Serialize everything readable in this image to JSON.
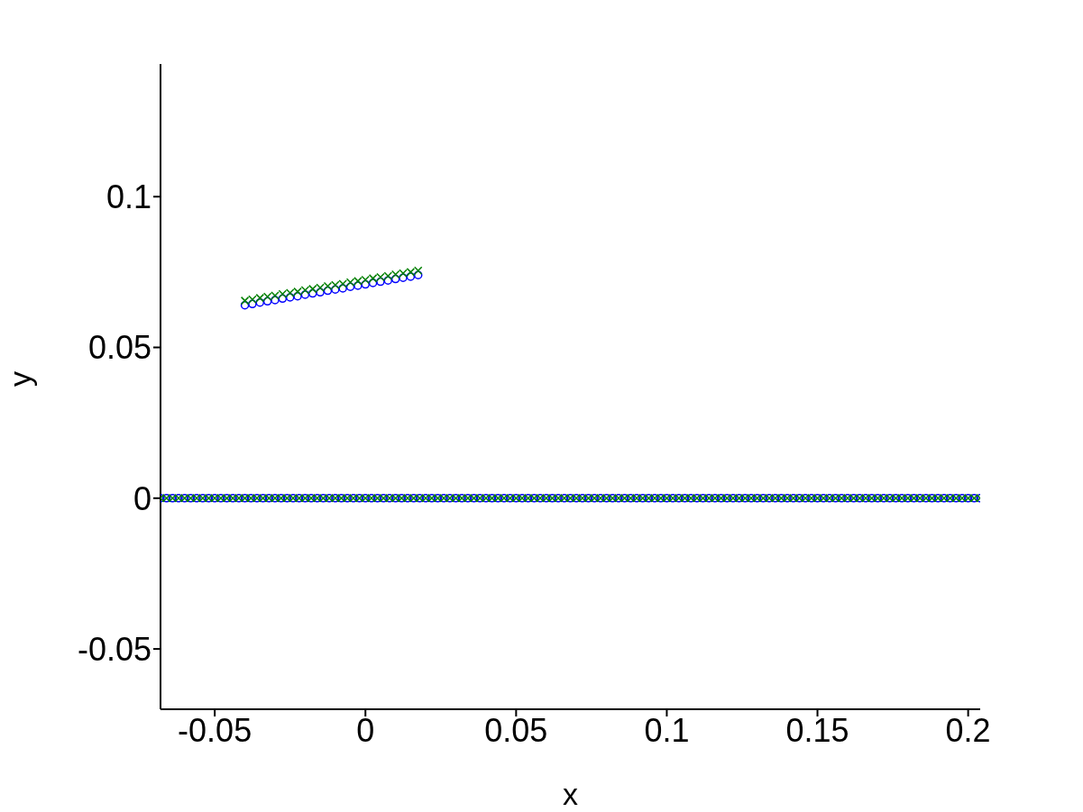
{
  "chart_data": {
    "type": "scatter",
    "xlabel": "x",
    "ylabel": "y",
    "xlim": [
      -0.068,
      0.204
    ],
    "ylim": [
      -0.07,
      0.144
    ],
    "xticks": [
      -0.05,
      0,
      0.05,
      0.1,
      0.15,
      0.2
    ],
    "yticks": [
      -0.05,
      0,
      0.05,
      0.1
    ],
    "series": [
      {
        "color": "#0000ff",
        "marker": "circle",
        "x": [
          -0.068,
          -0.066,
          -0.064,
          -0.062,
          -0.06,
          -0.058,
          -0.056,
          -0.054,
          -0.052,
          -0.05,
          -0.048,
          -0.046,
          -0.044,
          -0.042,
          -0.04,
          -0.038,
          -0.036,
          -0.034,
          -0.032,
          -0.03,
          -0.028,
          -0.026,
          -0.024,
          -0.022,
          -0.02,
          -0.018,
          -0.016,
          -0.014,
          -0.012,
          -0.01,
          -0.008,
          -0.006,
          -0.004,
          -0.002,
          0,
          0.002,
          0.004,
          0.006,
          0.008,
          0.01,
          0.012,
          0.014,
          0.016,
          0.018,
          0.02,
          0.022,
          0.024,
          0.026,
          0.028,
          0.03,
          0.032,
          0.034,
          0.036,
          0.038,
          0.04,
          0.042,
          0.044,
          0.046,
          0.048,
          0.05,
          0.052,
          0.054,
          0.056,
          0.058,
          0.06,
          0.062,
          0.064,
          0.066,
          0.068,
          0.07,
          0.072,
          0.074,
          0.076,
          0.078,
          0.08,
          0.082,
          0.084,
          0.086,
          0.088,
          0.09,
          0.092,
          0.094,
          0.096,
          0.098,
          0.1,
          0.102,
          0.104,
          0.106,
          0.108,
          0.11,
          0.112,
          0.114,
          0.116,
          0.118,
          0.12,
          0.122,
          0.124,
          0.126,
          0.128,
          0.13,
          0.132,
          0.134,
          0.136,
          0.138,
          0.14,
          0.142,
          0.144,
          0.146,
          0.148,
          0.15,
          0.152,
          0.154,
          0.156,
          0.158,
          0.16,
          0.162,
          0.164,
          0.166,
          0.168,
          0.17,
          0.172,
          0.174,
          0.176,
          0.178,
          0.18,
          0.182,
          0.184,
          0.186,
          0.188,
          0.19,
          0.192,
          0.194,
          0.196,
          0.198,
          0.2,
          0.202,
          0.204
        ],
        "values": [
          0,
          0,
          0,
          0,
          0,
          0,
          0,
          0,
          0,
          0,
          0,
          0,
          0,
          0,
          0,
          0,
          0,
          0,
          0,
          0,
          0,
          0,
          0,
          0,
          0,
          0,
          0,
          0,
          0,
          0,
          0,
          0,
          0,
          0,
          0,
          0,
          0,
          0,
          0,
          0,
          0,
          0,
          0,
          0,
          0,
          0,
          0,
          0,
          0,
          0,
          0,
          0,
          0,
          0,
          0,
          0,
          0,
          0,
          0,
          0,
          0,
          0,
          0,
          0,
          0,
          0,
          0,
          0,
          0,
          0,
          0,
          0,
          0,
          0,
          0,
          0,
          0,
          0,
          0,
          0,
          0,
          0,
          0,
          0,
          0,
          0,
          0,
          0,
          0,
          0,
          0,
          0,
          0,
          0,
          0,
          0,
          0,
          0,
          0,
          0,
          0,
          0,
          0,
          0,
          0,
          0,
          0,
          0,
          0,
          0,
          0,
          0,
          0,
          0,
          0,
          0,
          0,
          0,
          0,
          0,
          0,
          0,
          0,
          0,
          0,
          0,
          0,
          0,
          0,
          0,
          0,
          0,
          0,
          0,
          0,
          0,
          0
        ]
      },
      {
        "color": "#007f00",
        "marker": "cross",
        "x": [
          -0.068,
          -0.066,
          -0.064,
          -0.062,
          -0.06,
          -0.058,
          -0.056,
          -0.054,
          -0.052,
          -0.05,
          -0.048,
          -0.046,
          -0.044,
          -0.042,
          -0.04,
          -0.038,
          -0.036,
          -0.034,
          -0.032,
          -0.03,
          -0.028,
          -0.026,
          -0.024,
          -0.022,
          -0.02,
          -0.018,
          -0.016,
          -0.014,
          -0.012,
          -0.01,
          -0.008,
          -0.006,
          -0.004,
          -0.002,
          0,
          0.002,
          0.004,
          0.006,
          0.008,
          0.01,
          0.012,
          0.014,
          0.016,
          0.018,
          0.02,
          0.022,
          0.024,
          0.026,
          0.028,
          0.03,
          0.032,
          0.034,
          0.036,
          0.038,
          0.04,
          0.042,
          0.044,
          0.046,
          0.048,
          0.05,
          0.052,
          0.054,
          0.056,
          0.058,
          0.06,
          0.062,
          0.064,
          0.066,
          0.068,
          0.07,
          0.072,
          0.074,
          0.076,
          0.078,
          0.08,
          0.082,
          0.084,
          0.086,
          0.088,
          0.09,
          0.092,
          0.094,
          0.096,
          0.098,
          0.1,
          0.102,
          0.104,
          0.106,
          0.108,
          0.11,
          0.112,
          0.114,
          0.116,
          0.118,
          0.12,
          0.122,
          0.124,
          0.126,
          0.128,
          0.13,
          0.132,
          0.134,
          0.136,
          0.138,
          0.14,
          0.142,
          0.144,
          0.146,
          0.148,
          0.15,
          0.152,
          0.154,
          0.156,
          0.158,
          0.16,
          0.162,
          0.164,
          0.166,
          0.168,
          0.17,
          0.172,
          0.174,
          0.176,
          0.178,
          0.18,
          0.182,
          0.184,
          0.186,
          0.188,
          0.19,
          0.192,
          0.194,
          0.196,
          0.198,
          0.2,
          0.202,
          0.204
        ],
        "values": [
          0,
          0,
          0,
          0,
          0,
          0,
          0,
          0,
          0,
          0,
          0,
          0,
          0,
          0,
          0,
          0,
          0,
          0,
          0,
          0,
          0,
          0,
          0,
          0,
          0,
          0,
          0,
          0,
          0,
          0,
          0,
          0,
          0,
          0,
          0,
          0,
          0,
          0,
          0,
          0,
          0,
          0,
          0,
          0,
          0,
          0,
          0,
          0,
          0,
          0,
          0,
          0,
          0,
          0,
          0,
          0,
          0,
          0,
          0,
          0,
          0,
          0,
          0,
          0,
          0,
          0,
          0,
          0,
          0,
          0,
          0,
          0,
          0,
          0,
          0,
          0,
          0,
          0,
          0,
          0,
          0,
          0,
          0,
          0,
          0,
          0,
          0,
          0,
          0,
          0,
          0,
          0,
          0,
          0,
          0,
          0,
          0,
          0,
          0,
          0,
          0,
          0,
          0,
          0,
          0,
          0,
          0,
          0,
          0,
          0,
          0,
          0,
          0,
          0,
          0,
          0,
          0,
          0,
          0,
          0,
          0,
          0,
          0,
          0,
          0,
          0,
          0,
          0,
          0,
          0,
          0,
          0,
          0,
          0,
          0,
          0,
          0
        ]
      },
      {
        "color": "#0000ff",
        "marker": "circle",
        "x": [
          -0.04,
          -0.0375,
          -0.035,
          -0.0325,
          -0.03,
          -0.0275,
          -0.025,
          -0.0225,
          -0.02,
          -0.0175,
          -0.015,
          -0.0125,
          -0.01,
          -0.0075,
          -0.005,
          -0.0025,
          0,
          0.0025,
          0.005,
          0.0075,
          0.01,
          0.0125,
          0.015,
          0.0175
        ],
        "values": [
          0.064,
          0.0644,
          0.0649,
          0.0653,
          0.0657,
          0.0662,
          0.0666,
          0.067,
          0.0675,
          0.0679,
          0.0683,
          0.0688,
          0.0692,
          0.0696,
          0.0701,
          0.0705,
          0.0709,
          0.0714,
          0.0718,
          0.0722,
          0.0727,
          0.0731,
          0.0735,
          0.074
        ]
      },
      {
        "color": "#007f00",
        "marker": "cross",
        "x": [
          -0.04,
          -0.0375,
          -0.035,
          -0.0325,
          -0.03,
          -0.0275,
          -0.025,
          -0.0225,
          -0.02,
          -0.0175,
          -0.015,
          -0.0125,
          -0.01,
          -0.0075,
          -0.005,
          -0.0025,
          0,
          0.0025,
          0.005,
          0.0075,
          0.01,
          0.0125,
          0.015,
          0.0175
        ],
        "values": [
          0.0655,
          0.0659,
          0.0664,
          0.0668,
          0.0672,
          0.0677,
          0.0681,
          0.0685,
          0.069,
          0.0694,
          0.0698,
          0.0703,
          0.0707,
          0.0711,
          0.0716,
          0.072,
          0.0724,
          0.0729,
          0.0733,
          0.0737,
          0.0742,
          0.0746,
          0.075,
          0.0755
        ]
      }
    ]
  }
}
